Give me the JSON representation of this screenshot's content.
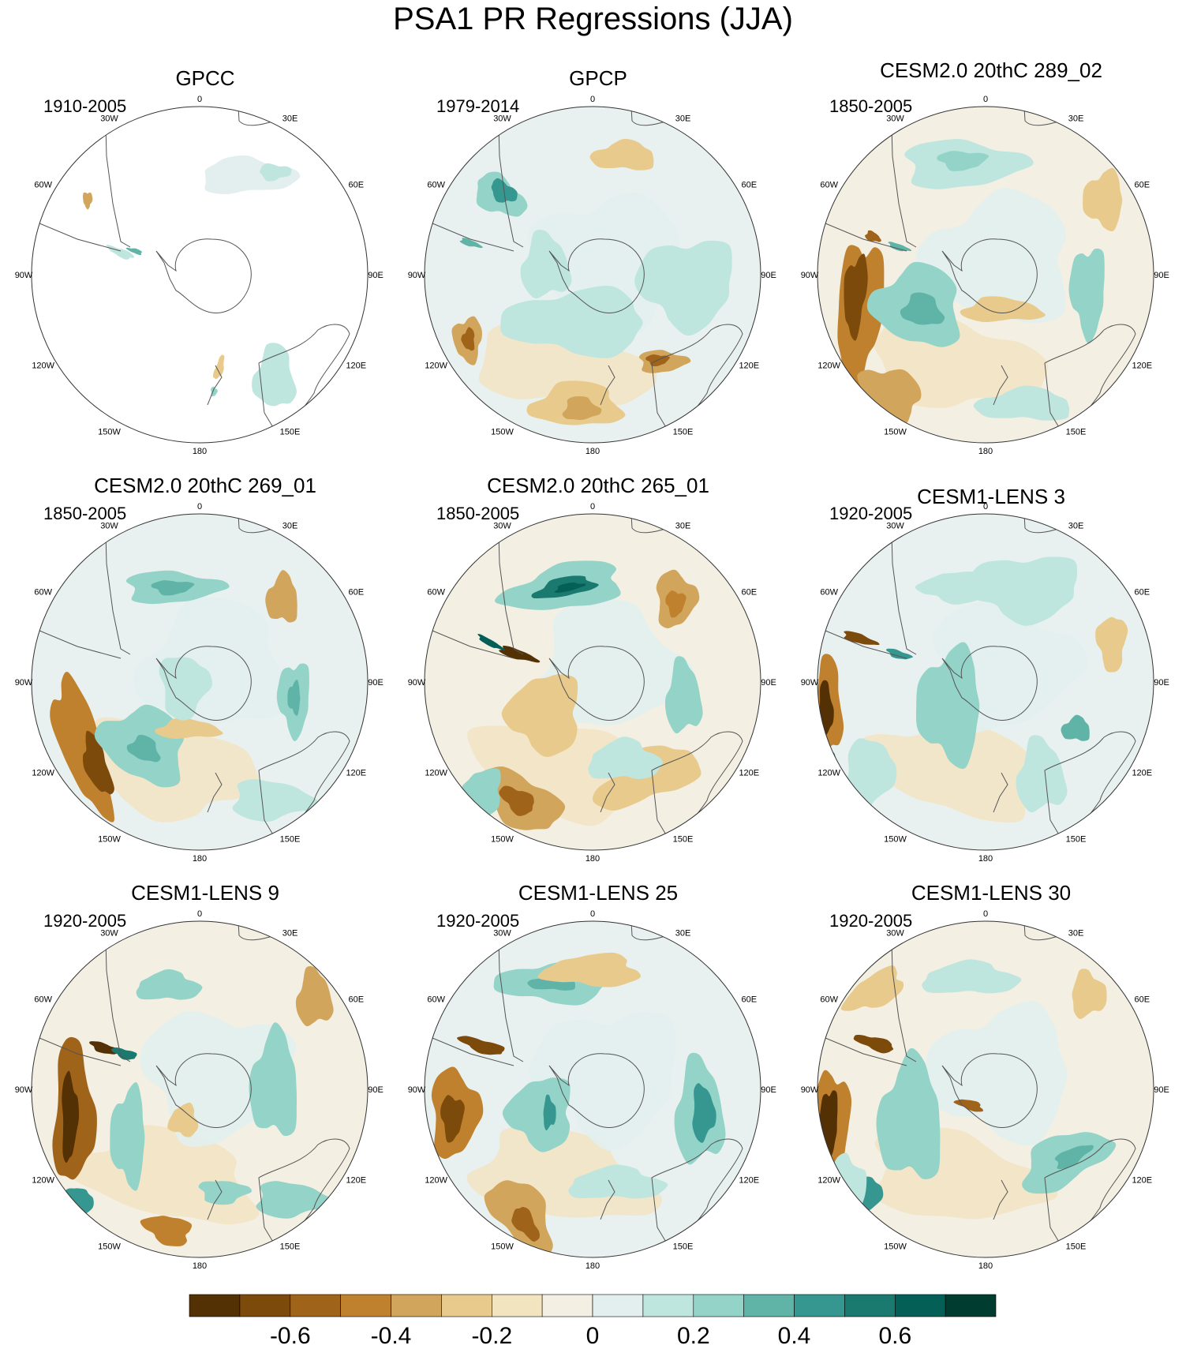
{
  "title": "PSA1 PR Regressions (JJA)",
  "chart_data": {
    "type": "polar-stereographic contour map panels",
    "variable": "precipitation regression onto PSA1",
    "season": "JJA",
    "hemisphere": "Southern",
    "panels": [
      {
        "title": "GPCC",
        "period": "1910-2005"
      },
      {
        "title": "GPCP",
        "period": "1979-2014"
      },
      {
        "title": "CESM2.0 20thC 289_02",
        "period": "1850-2005"
      },
      {
        "title": "CESM2.0 20thC 269_01",
        "period": "1850-2005"
      },
      {
        "title": "CESM2.0 20thC 265_01",
        "period": "1850-2005"
      },
      {
        "title": "CESM1-LENS 3",
        "period": "1920-2005"
      },
      {
        "title": "CESM1-LENS 9",
        "period": "1920-2005"
      },
      {
        "title": "CESM1-LENS 25",
        "period": "1920-2005"
      },
      {
        "title": "CESM1-LENS 30",
        "period": "1920-2005"
      }
    ],
    "longitude_labels": [
      "0",
      "30E",
      "60E",
      "90E",
      "120E",
      "150E",
      "180",
      "150W",
      "120W",
      "90W",
      "60W",
      "30W"
    ],
    "colorbar": {
      "levels": [
        -0.8,
        -0.7,
        -0.6,
        -0.5,
        -0.4,
        -0.3,
        -0.2,
        -0.1,
        0,
        0.1,
        0.2,
        0.3,
        0.4,
        0.5,
        0.6,
        0.7,
        0.8
      ],
      "colors": [
        "#543005",
        "#7c4a0b",
        "#a0631a",
        "#bf812d",
        "#d2a55c",
        "#e8ca8c",
        "#f3e4c0",
        "#f4efe3",
        "#e2efee",
        "#bfe5df",
        "#93d3c8",
        "#5fb4a7",
        "#35978f",
        "#1a7a70",
        "#045f56",
        "#003c30"
      ],
      "tick_labels": [
        "-0.6",
        "-0.4",
        "-0.2",
        "0",
        "0.2",
        "0.4",
        "0.6"
      ],
      "tick_values": [
        -0.6,
        -0.4,
        -0.2,
        0,
        0.2,
        0.4,
        0.6
      ]
    }
  }
}
